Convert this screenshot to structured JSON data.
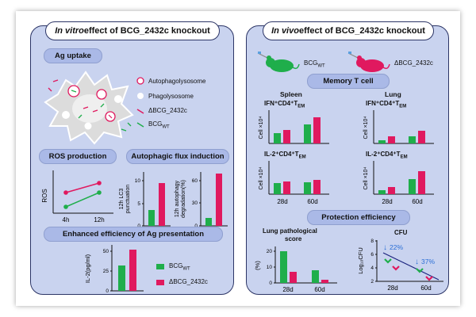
{
  "left": {
    "header_italic": "In vitro",
    "header_rest": " effect of BCG_2432c knockout",
    "ag_uptake": "Ag uptake",
    "legend": {
      "autophagolysosome": "Autophagolysosome",
      "phagolysosome": "Phagolysosome",
      "ko": "ΔBCG_2432c",
      "wt": "BCG",
      "wt_sub": "WT"
    },
    "ros_title": "ROS production",
    "ros_ylabel": "ROS",
    "ros_x": [
      "4h",
      "12h"
    ],
    "autophagy_title": "Autophagic flux induction",
    "lc3_ylabel_1": "12h LC3",
    "lc3_ylabel_2": "punctuation",
    "lc3_ticks": [
      "0",
      "5",
      "10"
    ],
    "deg_ylabel_1": "12h autophagy",
    "deg_ylabel_2": "degradation(%)",
    "deg_ticks": [
      "0",
      "30",
      "60"
    ],
    "ag_presentation_title": "Enhanced efficiency of Ag presentation",
    "il2_ylabel": "IL-2(pg/ml)",
    "il2_ticks": [
      "0",
      "25",
      "50"
    ],
    "legend2_wt": "BCG",
    "legend2_wt_sub": "WT",
    "legend2_ko": "ΔBCG_2432c"
  },
  "right": {
    "header_italic": "In vivo",
    "header_rest": " effect of BCG_2432c knockout",
    "mouse_wt": "BCG",
    "mouse_wt_sub": "WT",
    "mouse_ko": "ΔBCG_2432c",
    "memory_title": "Memory T cell",
    "spleen": "Spleen",
    "lung": "Lung",
    "ifn_label": "IFN⁺CD4⁺T",
    "il2_label": "IL-2⁺CD4⁺T",
    "em_sub": "EM",
    "cell_ylabel": "Cell ×10⁴",
    "x_28d": "28d",
    "x_60d": "60d",
    "protection_title": "Protection efficiency",
    "lung_path_1": "Lung pathological",
    "lung_path_2": "score",
    "lung_path_ylabel": "(%)",
    "lung_path_ticks": [
      "0",
      "10",
      "20"
    ],
    "cfu_title": "CFU",
    "cfu_ylabel": "Log₁₀CFU",
    "cfu_ticks": [
      "2",
      "4",
      "6",
      "8"
    ],
    "cfu_28d_pct": "22%",
    "cfu_60d_pct": "37%"
  },
  "colors": {
    "wt": "#1fae4b",
    "ko": "#e0195f",
    "panel": "#c9d3ef",
    "pill": "#aab9e7",
    "border": "#2c3566",
    "arrow_blue": "#2b6fd6"
  },
  "chart_data": [
    {
      "type": "line",
      "title": "ROS production",
      "ylabel": "ROS",
      "categories": [
        "4h",
        "12h"
      ],
      "series": [
        {
          "name": "ΔBCG_2432c",
          "values": [
            2.0,
            3.0
          ]
        },
        {
          "name": "BCGWT",
          "values": [
            1.0,
            2.0
          ]
        }
      ]
    },
    {
      "type": "bar",
      "ylabel": "12h LC3 punctuation",
      "ylim": [
        0,
        12
      ],
      "series": [
        {
          "name": "BCGWT",
          "values": [
            3.5
          ]
        },
        {
          "name": "ΔBCG_2432c",
          "values": [
            9.5
          ]
        }
      ]
    },
    {
      "type": "bar",
      "ylabel": "12h autophagy degradation(%)",
      "ylim": [
        0,
        72
      ],
      "series": [
        {
          "name": "BCGWT",
          "values": [
            10
          ]
        },
        {
          "name": "ΔBCG_2432c",
          "values": [
            68
          ]
        }
      ]
    },
    {
      "type": "bar",
      "ylabel": "IL-2(pg/ml)",
      "ylim": [
        0,
        60
      ],
      "series": [
        {
          "name": "BCGWT",
          "values": [
            32
          ]
        },
        {
          "name": "ΔBCG_2432c",
          "values": [
            52
          ]
        }
      ]
    },
    {
      "type": "bar",
      "title": "Spleen IFN⁺CD4⁺TEM",
      "categories": [
        "28d",
        "60d"
      ],
      "ylim": [
        0,
        30
      ],
      "series": [
        {
          "name": "BCGWT",
          "values": [
            10,
            18
          ]
        },
        {
          "name": "ΔBCG_2432c",
          "values": [
            13,
            25
          ]
        }
      ]
    },
    {
      "type": "bar",
      "title": "Lung IFN⁺CD4⁺TEM",
      "categories": [
        "28d",
        "60d"
      ],
      "ylim": [
        0,
        30
      ],
      "series": [
        {
          "name": "BCGWT",
          "values": [
            3,
            7
          ]
        },
        {
          "name": "ΔBCG_2432c",
          "values": [
            7,
            12
          ]
        }
      ]
    },
    {
      "type": "bar",
      "title": "Spleen IL-2⁺CD4⁺TEM",
      "categories": [
        "28d",
        "60d"
      ],
      "ylim": [
        0,
        30
      ],
      "series": [
        {
          "name": "BCGWT",
          "values": [
            10,
            11
          ]
        },
        {
          "name": "ΔBCG_2432c",
          "values": [
            12,
            13
          ]
        }
      ]
    },
    {
      "type": "bar",
      "title": "Lung IL-2⁺CD4⁺TEM",
      "categories": [
        "28d",
        "60d"
      ],
      "ylim": [
        0,
        30
      ],
      "series": [
        {
          "name": "BCGWT",
          "values": [
            4,
            14
          ]
        },
        {
          "name": "ΔBCG_2432c",
          "values": [
            7,
            21
          ]
        }
      ]
    },
    {
      "type": "bar",
      "title": "Lung pathological score",
      "ylabel": "(%)",
      "categories": [
        "28d",
        "60d"
      ],
      "ylim": [
        0,
        24
      ],
      "series": [
        {
          "name": "BCGWT",
          "values": [
            20,
            8
          ]
        },
        {
          "name": "ΔBCG_2432c",
          "values": [
            7,
            2
          ]
        }
      ]
    },
    {
      "type": "scatter",
      "title": "CFU",
      "ylabel": "Log10CFU",
      "categories": [
        "28d",
        "60d"
      ],
      "ylim": [
        2,
        8
      ],
      "series": [
        {
          "name": "BCGWT",
          "values": [
            5.2,
            3.8
          ]
        },
        {
          "name": "ΔBCG_2432c",
          "values": [
            4.1,
            2.4
          ]
        }
      ]
    }
  ]
}
